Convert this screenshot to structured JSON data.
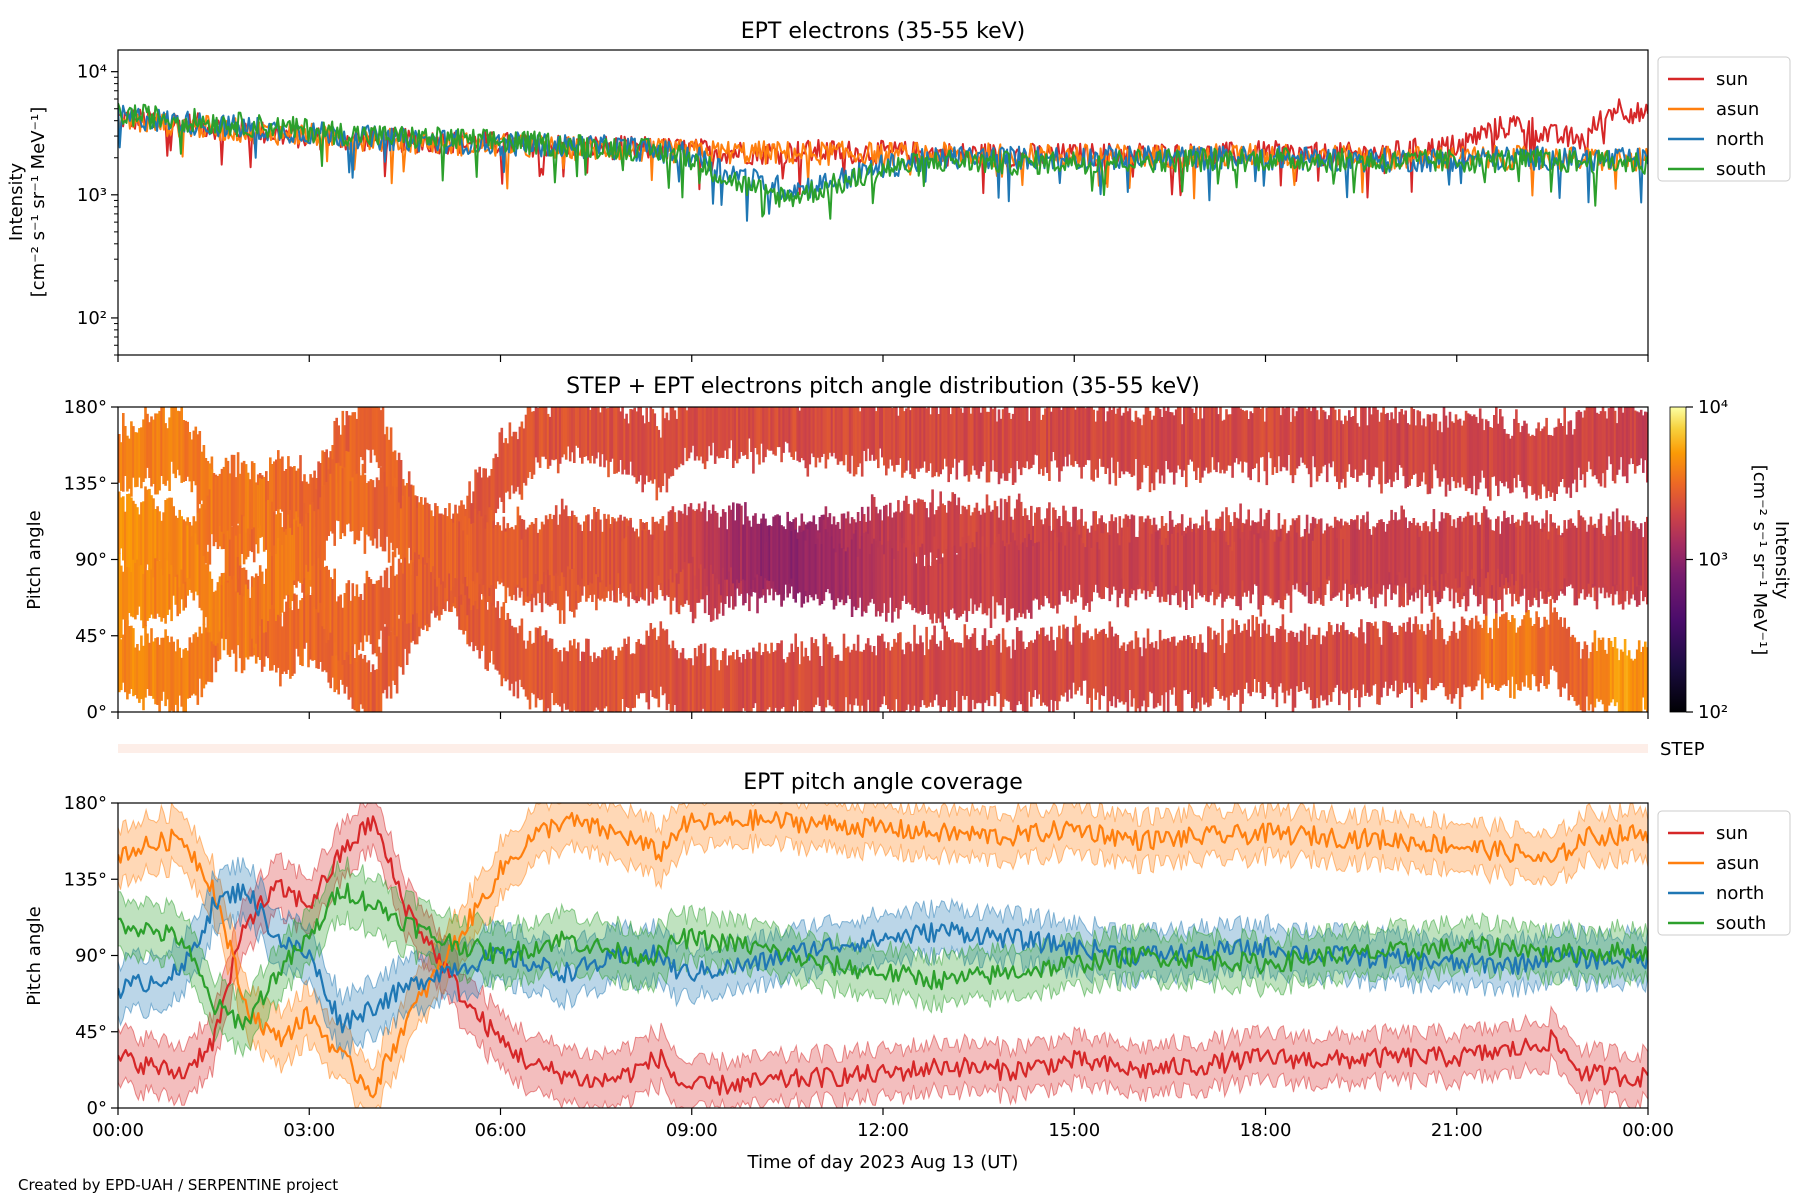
{
  "credit": "Created by EPD-UAH / SERPENTINE project",
  "colors": {
    "sun": "#d62728",
    "asun": "#ff7f0e",
    "north": "#1f77b4",
    "south": "#2ca02c"
  },
  "chart_data": [
    {
      "id": "panel1",
      "type": "line",
      "title": "EPT electrons (35-55 keV)",
      "ylabel_line1": "Intensity",
      "ylabel_line2": "[cm⁻² s⁻¹ sr⁻¹ MeV⁻¹]",
      "yscale": "log",
      "ylim": [
        50,
        15000
      ],
      "yticks": [
        {
          "value": 100,
          "label": "10²"
        },
        {
          "value": 1000,
          "label": "10³"
        },
        {
          "value": 10000,
          "label": "10⁴"
        }
      ],
      "xlim_hours": [
        0,
        24
      ],
      "legend_position": "outside-right",
      "series": [
        {
          "name": "sun",
          "color": "#d62728",
          "x": [
            0,
            1,
            2,
            3,
            4,
            5,
            6,
            7,
            8,
            9,
            10,
            11,
            12,
            13,
            14,
            15,
            16,
            17,
            18,
            19,
            20,
            21,
            21.5,
            22,
            22.5,
            23,
            23.5,
            24
          ],
          "y": [
            4200,
            3800,
            3300,
            2900,
            2800,
            2700,
            2600,
            2500,
            2400,
            2300,
            2200,
            2250,
            2200,
            2150,
            2100,
            2100,
            2150,
            2100,
            2200,
            2100,
            2200,
            2500,
            3300,
            3800,
            3000,
            2800,
            5200,
            4300
          ]
        },
        {
          "name": "asun",
          "color": "#ff7f0e",
          "x": [
            0,
            2,
            4,
            6,
            8,
            10,
            12,
            14,
            16,
            18,
            20,
            22,
            24
          ],
          "y": [
            4000,
            3300,
            2800,
            2500,
            2300,
            2200,
            2150,
            2100,
            2050,
            2100,
            2000,
            2000,
            1900
          ]
        },
        {
          "name": "north",
          "color": "#1f77b4",
          "x": [
            0,
            2,
            4,
            6,
            8,
            9,
            9.5,
            10,
            10.5,
            11,
            11.5,
            12,
            13,
            14,
            16,
            18,
            20,
            22,
            24
          ],
          "y": [
            4300,
            3500,
            2900,
            2600,
            2400,
            2100,
            1600,
            1300,
            1100,
            1200,
            1400,
            1700,
            2000,
            2000,
            2000,
            2000,
            1900,
            2000,
            1900
          ]
        },
        {
          "name": "south",
          "color": "#2ca02c",
          "x": [
            0,
            2,
            4,
            6,
            8,
            9,
            9.5,
            10,
            10.5,
            11,
            11.5,
            12,
            13,
            14,
            16,
            18,
            20,
            22,
            24
          ],
          "y": [
            4500,
            3700,
            3000,
            2700,
            2400,
            2000,
            1400,
            1100,
            950,
            1100,
            1300,
            1600,
            1900,
            1800,
            1900,
            1950,
            1850,
            1900,
            1800
          ]
        }
      ]
    },
    {
      "id": "panel2",
      "type": "heatmap",
      "title": "STEP + EPT electrons pitch angle distribution (35-55 keV)",
      "ylabel": "Pitch angle",
      "ylim": [
        0,
        180
      ],
      "yticks": [
        {
          "value": 0,
          "label": "0°"
        },
        {
          "value": 45,
          "label": "45°"
        },
        {
          "value": 90,
          "label": "90°"
        },
        {
          "value": 135,
          "label": "135°"
        },
        {
          "value": 180,
          "label": "180°"
        }
      ],
      "colorbar": {
        "scale": "log",
        "range": [
          100,
          10000
        ],
        "ticks": [
          {
            "value": 100,
            "label": "10²"
          },
          {
            "value": 1000,
            "label": "10³"
          },
          {
            "value": 10000,
            "label": "10⁴"
          }
        ],
        "label_line1": "Intensity",
        "label_line2": "[cm⁻² s⁻¹ sr⁻¹ MeV⁻¹]",
        "colormap": "inferno"
      },
      "step_label": "STEP"
    },
    {
      "id": "panel3",
      "type": "line",
      "title": "EPT pitch angle coverage",
      "ylabel": "Pitch angle",
      "ylim": [
        0,
        180
      ],
      "yticks": [
        {
          "value": 0,
          "label": "0°"
        },
        {
          "value": 45,
          "label": "45°"
        },
        {
          "value": 90,
          "label": "90°"
        },
        {
          "value": 135,
          "label": "135°"
        },
        {
          "value": 180,
          "label": "180°"
        }
      ],
      "xlabel": "Time of day 2023 Aug 13 (UT)",
      "xlim_hours": [
        0,
        24
      ],
      "xticks": [
        {
          "value": 0,
          "label": "00:00"
        },
        {
          "value": 3,
          "label": "03:00"
        },
        {
          "value": 6,
          "label": "06:00"
        },
        {
          "value": 9,
          "label": "09:00"
        },
        {
          "value": 12,
          "label": "12:00"
        },
        {
          "value": 15,
          "label": "15:00"
        },
        {
          "value": 18,
          "label": "18:00"
        },
        {
          "value": 21,
          "label": "21:00"
        },
        {
          "value": 24,
          "label": "00:00"
        }
      ],
      "legend_position": "outside-right",
      "series": [
        {
          "name": "sun",
          "color": "#d62728",
          "x": [
            0,
            0.5,
            1,
            1.5,
            2,
            2.5,
            3,
            3.5,
            4,
            4.5,
            5,
            5.5,
            6,
            6.5,
            7,
            7.5,
            8,
            8.5,
            8.8,
            9,
            10,
            11,
            12,
            13,
            14,
            15,
            16,
            17,
            18,
            19,
            20,
            21,
            22,
            22.5,
            23,
            24
          ],
          "y": [
            30,
            25,
            20,
            40,
            110,
            130,
            120,
            150,
            170,
            120,
            90,
            60,
            40,
            25,
            20,
            15,
            20,
            30,
            15,
            12,
            15,
            18,
            20,
            25,
            22,
            28,
            22,
            25,
            30,
            28,
            30,
            30,
            35,
            40,
            20,
            18
          ]
        },
        {
          "name": "asun",
          "color": "#ff7f0e",
          "x": [
            0,
            0.5,
            1,
            1.5,
            2,
            2.5,
            3,
            3.5,
            4,
            4.5,
            5,
            5.5,
            6,
            6.5,
            7,
            7.5,
            8,
            8.5,
            8.8,
            9,
            10,
            11,
            12,
            13,
            14,
            15,
            16,
            17,
            18,
            19,
            20,
            21,
            22,
            22.5,
            23,
            24
          ],
          "y": [
            150,
            155,
            160,
            130,
            60,
            40,
            55,
            30,
            10,
            50,
            80,
            110,
            140,
            160,
            170,
            165,
            160,
            150,
            165,
            168,
            170,
            168,
            165,
            162,
            160,
            165,
            158,
            160,
            162,
            160,
            158,
            155,
            150,
            145,
            160,
            162
          ]
        },
        {
          "name": "north",
          "color": "#1f77b4",
          "x": [
            0,
            0.5,
            1,
            1.5,
            2,
            2.5,
            3,
            3.5,
            4,
            4.5,
            5,
            5.5,
            6,
            6.5,
            7,
            7.5,
            8,
            8.5,
            8.8,
            9,
            10,
            11,
            12,
            13,
            14,
            15,
            16,
            17,
            18,
            19,
            20,
            21,
            22,
            22.5,
            23,
            24
          ],
          "y": [
            70,
            75,
            80,
            120,
            130,
            100,
            90,
            50,
            60,
            70,
            80,
            85,
            90,
            85,
            80,
            85,
            90,
            90,
            80,
            80,
            85,
            95,
            100,
            105,
            100,
            95,
            90,
            92,
            95,
            90,
            88,
            85,
            85,
            90,
            88,
            88
          ]
        },
        {
          "name": "south",
          "color": "#2ca02c",
          "x": [
            0,
            0.5,
            1,
            1.5,
            2,
            2.5,
            3,
            3.5,
            4,
            4.5,
            5,
            5.5,
            6,
            6.5,
            7,
            7.5,
            8,
            8.5,
            8.8,
            9,
            10,
            11,
            12,
            13,
            14,
            15,
            16,
            17,
            18,
            19,
            20,
            21,
            22,
            22.5,
            23,
            24
          ],
          "y": [
            110,
            105,
            100,
            60,
            50,
            80,
            100,
            130,
            120,
            110,
            100,
            95,
            90,
            95,
            100,
            95,
            90,
            90,
            100,
            100,
            95,
            85,
            80,
            75,
            80,
            85,
            90,
            88,
            85,
            90,
            92,
            95,
            95,
            90,
            92,
            92
          ]
        }
      ]
    }
  ]
}
